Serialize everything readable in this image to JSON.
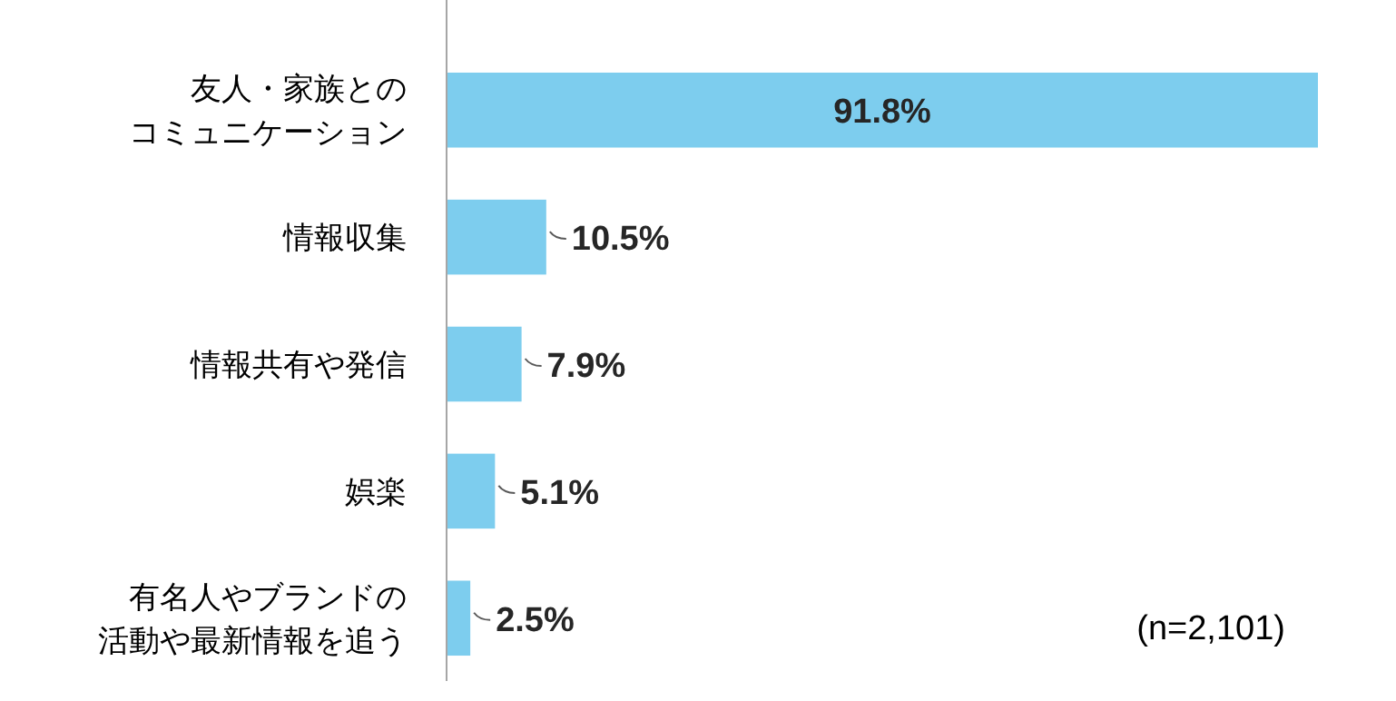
{
  "chart_data": {
    "type": "bar",
    "orientation": "horizontal",
    "categories": [
      "友人・家族とのコミュニケーション",
      "情報収集",
      "情報共有や発信",
      "娯楽",
      "有名人やブランドの活動や最新情報を追う"
    ],
    "values": [
      91.8,
      10.5,
      7.9,
      5.1,
      2.5
    ],
    "value_labels": [
      "91.8%",
      "10.5%",
      "7.9%",
      "5.1%",
      "2.5%"
    ],
    "color": "#7dcdee",
    "annotations": [
      "(n=2,101)"
    ]
  }
}
